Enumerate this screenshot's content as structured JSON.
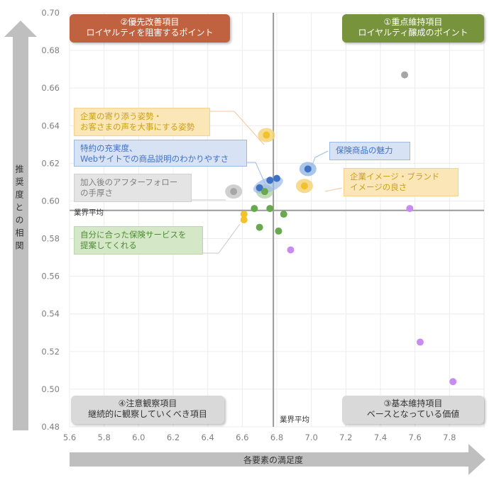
{
  "chart_data": {
    "type": "scatter",
    "xlabel": "各要素の満足度",
    "ylabel": "推奨度との相関",
    "xlim": [
      5.6,
      8.0
    ],
    "ylim": [
      0.48,
      0.7
    ],
    "xticks": [
      "5.6",
      "5.8",
      "6.0",
      "6.2",
      "6.4",
      "6.6",
      "6.8",
      "7.0",
      "7.2",
      "7.4",
      "7.6",
      "7.8"
    ],
    "yticks": [
      "0.48",
      "0.50",
      "0.52",
      "0.54",
      "0.56",
      "0.58",
      "0.60",
      "0.62",
      "0.64",
      "0.66",
      "0.68",
      "0.70"
    ],
    "avg_x": 6.78,
    "avg_y": 0.595,
    "avg_label_x": "業界平均",
    "avg_label_y": "業界平均",
    "series": [
      {
        "name": "gray",
        "color": "#a6a6a6",
        "points": [
          {
            "x": 7.54,
            "y": 0.667
          },
          {
            "x": 6.55,
            "y": 0.605
          }
        ]
      },
      {
        "name": "yellow",
        "color": "#f2c12e",
        "points": [
          {
            "x": 6.74,
            "y": 0.635
          },
          {
            "x": 6.96,
            "y": 0.608
          },
          {
            "x": 6.61,
            "y": 0.593
          },
          {
            "x": 6.61,
            "y": 0.59
          }
        ]
      },
      {
        "name": "blue",
        "color": "#3f72c5",
        "points": [
          {
            "x": 6.98,
            "y": 0.617
          },
          {
            "x": 6.76,
            "y": 0.611
          },
          {
            "x": 6.8,
            "y": 0.612
          },
          {
            "x": 6.7,
            "y": 0.607
          }
        ]
      },
      {
        "name": "green",
        "color": "#6aa84f",
        "points": [
          {
            "x": 6.73,
            "y": 0.605
          },
          {
            "x": 6.67,
            "y": 0.596
          },
          {
            "x": 6.76,
            "y": 0.596
          },
          {
            "x": 6.84,
            "y": 0.593
          },
          {
            "x": 6.7,
            "y": 0.586
          },
          {
            "x": 6.81,
            "y": 0.584
          }
        ]
      },
      {
        "name": "purple",
        "color": "#c88cf0",
        "points": [
          {
            "x": 7.57,
            "y": 0.596
          },
          {
            "x": 6.88,
            "y": 0.574
          },
          {
            "x": 7.63,
            "y": 0.525
          },
          {
            "x": 7.82,
            "y": 0.504
          }
        ]
      }
    ],
    "highlights": [
      {
        "x": 6.74,
        "y": 0.635,
        "color": "#f5d47a"
      },
      {
        "x": 6.96,
        "y": 0.608,
        "color": "#f5d47a"
      },
      {
        "x": 6.98,
        "y": 0.617,
        "color": "#9bbbe6"
      },
      {
        "x": 6.55,
        "y": 0.605,
        "color": "#c8c8c8"
      },
      {
        "x": 6.73,
        "y": 0.605,
        "color": "#b7d7a8"
      }
    ],
    "quadrants": {
      "q1": {
        "line1": "①重点維持項目",
        "line2": "ロイヤルティ醸成のポイント",
        "color": "#77933c"
      },
      "q2": {
        "line1": "②優先改善項目",
        "line2": "ロイヤルティを阻害するポイント",
        "color": "#c0623f"
      },
      "q3": {
        "line1": "③基本維持項目",
        "line2": "ベースとなっている価値",
        "color": "#d9d9d9"
      },
      "q4": {
        "line1": "④注意観察項目",
        "line2": "継続的に観察していくべき項目",
        "color": "#d9d9d9"
      }
    },
    "annotations": [
      {
        "line1": "企業の寄り添う姿勢・",
        "line2": "お客さまの声を大事にする姿勢",
        "color": "#c9a01a"
      },
      {
        "line1": "特約の充実度、",
        "line2": "Webサイトでの商品説明のわかりやすさ",
        "color": "#3f72c5"
      },
      {
        "line1": "加入後のアフターフォロー",
        "line2": "の手厚さ",
        "color": "#7f7f7f"
      },
      {
        "line1": "自分に合った保険サービスを",
        "line2": "提案してくれる",
        "color": "#4e8a34"
      },
      {
        "line1": "保険商品の魅力",
        "line2": "",
        "color": "#3f72c5"
      },
      {
        "line1": "企業イメージ・ブランド",
        "line2": "イメージの良さ",
        "color": "#c9a01a"
      }
    ]
  }
}
